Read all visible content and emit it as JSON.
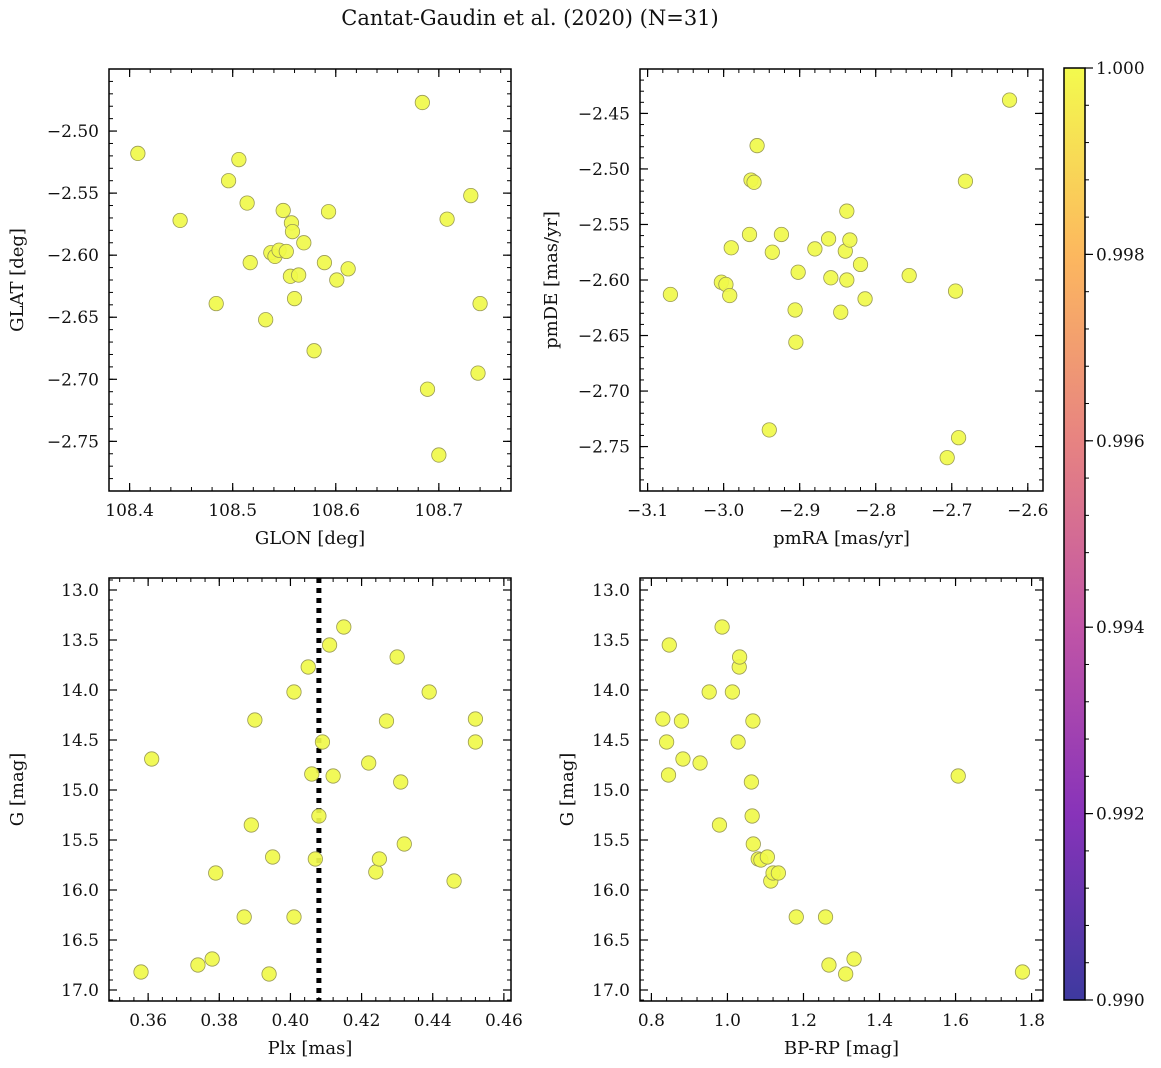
{
  "figure": {
    "title": "Cantat-Gaudin et al. (2020) (N=31)"
  },
  "colors": {
    "point_fill": "#f0f94a",
    "point_edge": "#9a9a55",
    "marker_line": "#000000",
    "colormap": [
      "#0d0887",
      "#6a00a8",
      "#b12a90",
      "#e16462",
      "#fca636",
      "#f0f921"
    ]
  },
  "colorbar": {
    "range": [
      0.99,
      1.0
    ],
    "ticks": [
      0.99,
      0.992,
      0.994,
      0.996,
      0.998,
      1.0
    ],
    "tick_labels": [
      "0.990",
      "0.992",
      "0.994",
      "0.996",
      "0.998",
      "1.000"
    ]
  },
  "chart_data": [
    {
      "id": "pos",
      "type": "scatter",
      "xlabel": "GLON [deg]",
      "ylabel": "GLAT [deg]",
      "xlim": [
        108.38,
        108.77
      ],
      "ylim": [
        -2.79,
        -2.45
      ],
      "xticks": [
        108.4,
        108.5,
        108.6,
        108.7
      ],
      "xtick_labels": [
        "108.4",
        "108.5",
        "108.6",
        "108.7"
      ],
      "yticks": [
        -2.5,
        -2.55,
        -2.6,
        -2.65,
        -2.7,
        -2.75
      ],
      "ytick_labels": [
        "−2.50",
        "−2.55",
        "−2.60",
        "−2.65",
        "−2.70",
        "−2.75"
      ],
      "points": [
        [
          108.408,
          -2.518
        ],
        [
          108.449,
          -2.572
        ],
        [
          108.484,
          -2.639
        ],
        [
          108.496,
          -2.54
        ],
        [
          108.506,
          -2.523
        ],
        [
          108.514,
          -2.558
        ],
        [
          108.517,
          -2.606
        ],
        [
          108.532,
          -2.652
        ],
        [
          108.537,
          -2.598
        ],
        [
          108.541,
          -2.601
        ],
        [
          108.545,
          -2.596
        ],
        [
          108.549,
          -2.564
        ],
        [
          108.552,
          -2.597
        ],
        [
          108.556,
          -2.617
        ],
        [
          108.557,
          -2.574
        ],
        [
          108.558,
          -2.581
        ],
        [
          108.56,
          -2.635
        ],
        [
          108.564,
          -2.616
        ],
        [
          108.569,
          -2.59
        ],
        [
          108.579,
          -2.677
        ],
        [
          108.589,
          -2.606
        ],
        [
          108.593,
          -2.565
        ],
        [
          108.601,
          -2.62
        ],
        [
          108.612,
          -2.611
        ],
        [
          108.684,
          -2.477
        ],
        [
          108.689,
          -2.708
        ],
        [
          108.7,
          -2.761
        ],
        [
          108.708,
          -2.571
        ],
        [
          108.731,
          -2.552
        ],
        [
          108.738,
          -2.695
        ],
        [
          108.74,
          -2.639
        ]
      ]
    },
    {
      "id": "pm",
      "type": "scatter",
      "xlabel": "pmRA [mas/yr]",
      "ylabel": "pmDE [mas/yr]",
      "xlim": [
        -3.11,
        -2.58
      ],
      "ylim": [
        -2.79,
        -2.41
      ],
      "xticks": [
        -3.1,
        -3.0,
        -2.9,
        -2.8,
        -2.7,
        -2.6
      ],
      "xtick_labels": [
        "−3.1",
        "−3.0",
        "−2.9",
        "−2.8",
        "−2.7",
        "−2.6"
      ],
      "yticks": [
        -2.45,
        -2.5,
        -2.55,
        -2.6,
        -2.65,
        -2.7,
        -2.75
      ],
      "ytick_labels": [
        "−2.45",
        "−2.50",
        "−2.55",
        "−2.60",
        "−2.65",
        "−2.70",
        "−2.75"
      ],
      "points": [
        [
          -3.07,
          -2.613
        ],
        [
          -3.003,
          -2.602
        ],
        [
          -2.997,
          -2.604
        ],
        [
          -2.992,
          -2.614
        ],
        [
          -2.99,
          -2.571
        ],
        [
          -2.966,
          -2.559
        ],
        [
          -2.964,
          -2.51
        ],
        [
          -2.96,
          -2.512
        ],
        [
          -2.956,
          -2.479
        ],
        [
          -2.94,
          -2.735
        ],
        [
          -2.936,
          -2.575
        ],
        [
          -2.924,
          -2.559
        ],
        [
          -2.906,
          -2.627
        ],
        [
          -2.905,
          -2.656
        ],
        [
          -2.902,
          -2.593
        ],
        [
          -2.88,
          -2.572
        ],
        [
          -2.862,
          -2.563
        ],
        [
          -2.859,
          -2.598
        ],
        [
          -2.846,
          -2.629
        ],
        [
          -2.84,
          -2.574
        ],
        [
          -2.838,
          -2.6
        ],
        [
          -2.838,
          -2.538
        ],
        [
          -2.834,
          -2.564
        ],
        [
          -2.82,
          -2.586
        ],
        [
          -2.814,
          -2.617
        ],
        [
          -2.756,
          -2.596
        ],
        [
          -2.706,
          -2.76
        ],
        [
          -2.695,
          -2.61
        ],
        [
          -2.691,
          -2.742
        ],
        [
          -2.682,
          -2.511
        ],
        [
          -2.624,
          -2.438
        ]
      ]
    },
    {
      "id": "plx",
      "type": "scatter",
      "xlabel": "Plx [mas]",
      "ylabel": "G [mag]",
      "xlim": [
        0.349,
        0.462
      ],
      "ylim": [
        17.11,
        12.88
      ],
      "xticks": [
        0.36,
        0.38,
        0.4,
        0.42,
        0.44,
        0.46
      ],
      "xtick_labels": [
        "0.36",
        "0.38",
        "0.40",
        "0.42",
        "0.44",
        "0.46"
      ],
      "yticks": [
        13.0,
        13.5,
        14.0,
        14.5,
        15.0,
        15.5,
        16.0,
        16.5,
        17.0
      ],
      "ytick_labels": [
        "13.0",
        "13.5",
        "14.0",
        "14.5",
        "15.0",
        "15.5",
        "16.0",
        "16.5",
        "17.0"
      ],
      "vline": 0.408,
      "points": [
        [
          0.358,
          16.82
        ],
        [
          0.361,
          14.69
        ],
        [
          0.374,
          16.75
        ],
        [
          0.378,
          16.69
        ],
        [
          0.379,
          15.83
        ],
        [
          0.387,
          16.27
        ],
        [
          0.389,
          15.35
        ],
        [
          0.39,
          14.3
        ],
        [
          0.394,
          16.84
        ],
        [
          0.395,
          15.67
        ],
        [
          0.401,
          14.02
        ],
        [
          0.401,
          16.27
        ],
        [
          0.405,
          13.77
        ],
        [
          0.406,
          14.84
        ],
        [
          0.407,
          15.69
        ],
        [
          0.408,
          15.26
        ],
        [
          0.409,
          14.52
        ],
        [
          0.411,
          13.55
        ],
        [
          0.412,
          14.86
        ],
        [
          0.415,
          13.37
        ],
        [
          0.422,
          14.73
        ],
        [
          0.424,
          15.82
        ],
        [
          0.425,
          15.69
        ],
        [
          0.427,
          14.31
        ],
        [
          0.43,
          13.67
        ],
        [
          0.431,
          14.92
        ],
        [
          0.432,
          15.54
        ],
        [
          0.439,
          14.02
        ],
        [
          0.446,
          15.91
        ],
        [
          0.452,
          14.29
        ],
        [
          0.452,
          14.52
        ]
      ]
    },
    {
      "id": "cmd",
      "type": "scatter",
      "xlabel": "BP-RP [mag]",
      "ylabel": "G [mag]",
      "xlim": [
        0.77,
        1.83
      ],
      "ylim": [
        17.11,
        12.88
      ],
      "xticks": [
        0.8,
        1.0,
        1.2,
        1.4,
        1.6,
        1.8
      ],
      "xtick_labels": [
        "0.8",
        "1.0",
        "1.2",
        "1.4",
        "1.6",
        "1.8"
      ],
      "yticks": [
        13.0,
        13.5,
        14.0,
        14.5,
        15.0,
        15.5,
        16.0,
        16.5,
        17.0
      ],
      "ytick_labels": [
        "13.0",
        "13.5",
        "14.0",
        "14.5",
        "15.0",
        "15.5",
        "16.0",
        "16.5",
        "17.0"
      ],
      "points": [
        [
          0.83,
          14.29
        ],
        [
          0.84,
          14.52
        ],
        [
          0.845,
          14.85
        ],
        [
          0.847,
          13.55
        ],
        [
          0.879,
          14.31
        ],
        [
          0.883,
          14.69
        ],
        [
          0.928,
          14.73
        ],
        [
          0.952,
          14.02
        ],
        [
          0.979,
          15.35
        ],
        [
          0.986,
          13.37
        ],
        [
          1.013,
          14.02
        ],
        [
          1.028,
          14.52
        ],
        [
          1.031,
          13.77
        ],
        [
          1.032,
          13.67
        ],
        [
          1.063,
          14.92
        ],
        [
          1.065,
          15.26
        ],
        [
          1.067,
          14.31
        ],
        [
          1.068,
          15.54
        ],
        [
          1.081,
          15.69
        ],
        [
          1.088,
          15.7
        ],
        [
          1.105,
          15.67
        ],
        [
          1.114,
          15.91
        ],
        [
          1.12,
          15.83
        ],
        [
          1.134,
          15.83
        ],
        [
          1.181,
          16.27
        ],
        [
          1.258,
          16.27
        ],
        [
          1.267,
          16.75
        ],
        [
          1.311,
          16.84
        ],
        [
          1.333,
          16.69
        ],
        [
          1.607,
          14.86
        ],
        [
          1.776,
          16.82
        ]
      ]
    }
  ]
}
